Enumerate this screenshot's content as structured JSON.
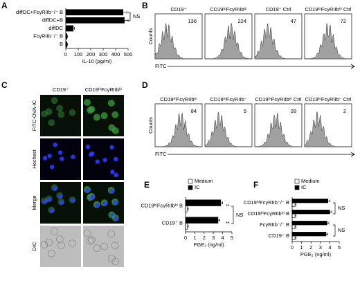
{
  "chart_data": [
    {
      "type": "bar",
      "orientation": "horizontal",
      "panel": "A",
      "categories": [
        "diffDC+FcγRIIb⁻/⁻ B",
        "diffDC+B",
        "diffDC",
        "FcγRIIb⁻/⁻ B",
        "B"
      ],
      "values": [
        460,
        470,
        60,
        10,
        10
      ],
      "errors": [
        30,
        30,
        10,
        5,
        5
      ],
      "color": "#000000",
      "xlim": [
        0,
        500
      ],
      "xticks": [
        0,
        100,
        200,
        300,
        400,
        500
      ],
      "xlabel": "IL-10 (pg/ml)",
      "annotations": [
        "NS"
      ]
    },
    {
      "type": "flow",
      "panel": "B",
      "titles": [
        "CD19⁺",
        "CD19ʰⁱFcγRIIbʰⁱ",
        "CD19⁺ Ctrl",
        "CD19ʰⁱFcγRIIbʰⁱ Ctrl"
      ],
      "values": [
        136,
        224,
        47,
        72
      ],
      "xlabel": "FITC",
      "ylabel": "Counts"
    },
    {
      "type": "flow",
      "panel": "D",
      "titles": [
        "CD19ʰⁱFcγRIIbʰⁱ",
        "CD19ʰⁱFcγRIIb⁻",
        "CD19ʰⁱFcγRIIbʰⁱ Ctrl",
        "CD19ʰⁱFcγRIIb⁻ Ctrl"
      ],
      "values": [
        84,
        5,
        28,
        2
      ],
      "xlabel": "FITC",
      "ylabel": "Counts"
    },
    {
      "type": "bar",
      "orientation": "horizontal",
      "panel": "E",
      "categories": [
        "CD19ʰⁱFcγRIIbʰⁱ B",
        "CD19⁺ B"
      ],
      "series": [
        {
          "name": "Medium",
          "color": "#ffffff",
          "values": [
            0.2,
            0.2
          ],
          "errors": [
            0.1,
            0.1
          ]
        },
        {
          "name": "IC",
          "color": "#000000",
          "values": [
            3.8,
            3.5
          ],
          "errors": [
            0.2,
            0.2
          ]
        }
      ],
      "xlim": [
        0,
        5
      ],
      "xticks": [
        0,
        1,
        2,
        3,
        4,
        5
      ],
      "xlabel": "PGE₂ (ng/ml)",
      "annotations": [
        "**",
        "**",
        "NS"
      ]
    },
    {
      "type": "bar",
      "orientation": "horizontal",
      "panel": "F",
      "categories": [
        "CD19ʰⁱFcγRIIb⁻/⁻ B",
        "CD19ʰⁱFcγRIIbʰⁱ B",
        "FcγRIIb⁻/⁻ B",
        "CD19⁺ B"
      ],
      "series": [
        {
          "name": "Medium",
          "color": "#ffffff",
          "values": [
            0.3,
            0.3,
            0.3,
            0.3
          ],
          "errors": [
            0.1,
            0.1,
            0.1,
            0.1
          ]
        },
        {
          "name": "IC",
          "color": "#000000",
          "values": [
            3.8,
            4.0,
            3.7,
            3.6
          ],
          "errors": [
            0.2,
            0.2,
            0.2,
            0.2
          ]
        }
      ],
      "xlim": [
        0,
        5
      ],
      "xticks": [
        0,
        1,
        2,
        3,
        4,
        5
      ],
      "xlabel": "PGE₂ (ng/ml)",
      "annotations": [
        "NS",
        "NS"
      ]
    }
  ],
  "image_panel": {
    "panel": "C",
    "columns": [
      "CD19⁺",
      "CD19ʰⁱFcγRIIbʰⁱ"
    ],
    "rows": [
      "FITC-OVA-IC",
      "Hochest",
      "Merge",
      "DIC"
    ]
  }
}
